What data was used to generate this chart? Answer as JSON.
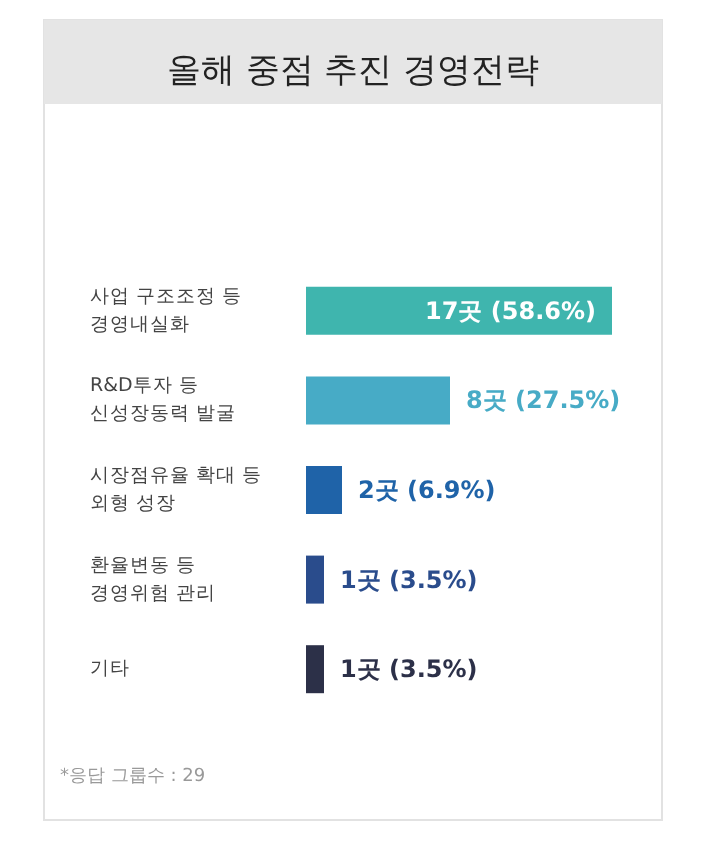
{
  "chart_data": {
    "type": "bar",
    "orientation": "horizontal",
    "title": "올해 중점 추진 경영전략",
    "categories": [
      "사업 구조조정 등\n경영내실화",
      "R&D투자 등\n신성장동력 발굴",
      "시장점유율 확대 등\n외형 성장",
      "환율변동 등\n경영위험 관리",
      "기타"
    ],
    "values": [
      17,
      8,
      2,
      1,
      1
    ],
    "colors": [
      "#3fb5ae",
      "#47abc6",
      "#1f63a8",
      "#2a4c8c",
      "#2c3048"
    ],
    "value_labels": [
      "17곳 (58.6%)",
      "8곳 (27.5%)",
      "2곳 (6.9%)",
      "1곳 (3.5%)",
      "1곳 (3.5%)"
    ],
    "annotations": [
      "*응답 그룹수 : 29"
    ],
    "grid": false
  }
}
